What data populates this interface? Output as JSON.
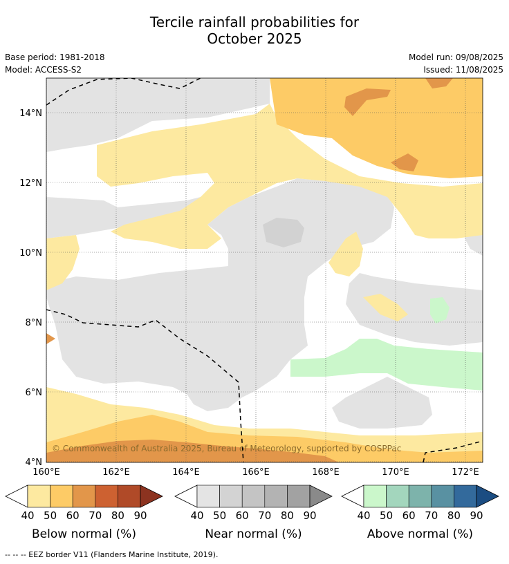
{
  "title": {
    "line1": "Tercile rainfall probabilities for",
    "line2": "October 2025"
  },
  "meta": {
    "base_period": "Base period: 1981-2018",
    "model": "Model: ACCESS-S2",
    "model_run": "Model run: 09/08/2025",
    "issued": "Issued: 11/08/2025"
  },
  "map": {
    "lat_labels": [
      "14°N",
      "12°N",
      "10°N",
      "8°N",
      "6°N",
      "4°N"
    ],
    "lon_labels": [
      "160°E",
      "162°E",
      "164°E",
      "166°E",
      "168°E",
      "170°E",
      "172°E"
    ],
    "copyright": "© Commonwealth of Australia 2025, Bureau of Meteorology, supported by COSPPac",
    "colors": {
      "near_normal_light": "#e3e3e3",
      "near_normal_mid": "#d2d2d2",
      "below_40": "#fde9a0",
      "below_50": "#fdcb66",
      "below_60": "#e2964a",
      "above_40": "#cbf7cb",
      "eez_border": "#000000"
    }
  },
  "legends": [
    {
      "title": "Below normal (%)",
      "ticks": [
        "40",
        "50",
        "60",
        "70",
        "80",
        "90"
      ],
      "colors": [
        "#fde9a0",
        "#fdcb66",
        "#e2964a",
        "#cd6131",
        "#b04a28",
        "#8c3320"
      ]
    },
    {
      "title": "Near normal (%)",
      "ticks": [
        "40",
        "50",
        "60",
        "70",
        "80",
        "90"
      ],
      "colors": [
        "#e4e4e4",
        "#d3d3d3",
        "#c4c4c4",
        "#b3b3b3",
        "#a2a2a2",
        "#8a8a8a"
      ]
    },
    {
      "title": "Above normal (%)",
      "ticks": [
        "40",
        "50",
        "60",
        "70",
        "80",
        "90"
      ],
      "colors": [
        "#cbf7cb",
        "#a3d6bd",
        "#7db3ab",
        "#5991a2",
        "#336a9c",
        "#1b4d82"
      ]
    }
  ],
  "footer": "--  --  -- EEZ border V11 (Flanders Marine Institute, 2019)."
}
